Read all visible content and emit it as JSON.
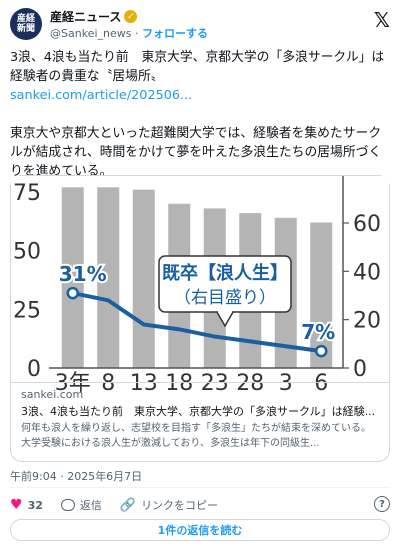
{
  "account": {
    "avatar_text": "産経新聞",
    "name": "産経ニュース",
    "handle": "@Sankei_news",
    "separator": "·",
    "follow_label": "フォローする"
  },
  "tweet": {
    "text_line1": "3浪、4浪も当たり前　東京大学、京都大学の「多浪サークル」は経験者の貴重な〝居場所〟",
    "link": "sankei.com/article/202506...",
    "text_para2": "東京大や京都大といった超難関大学では、経験者を集めたサークルが結成され、時間をかけて夢を叶えた多浪生たちの居場所づくりを進めている。",
    "timestamp": "午前9:04 · 2025年6月7日"
  },
  "card": {
    "domain": "sankei.com",
    "title": "3浪、4浪も当たり前　東京大学、京都大学の「多浪サークル」は経験...",
    "description": "何年も浪人を繰り返し、志望校を目指す「多浪生」たちが結束を深めている。大学受験における浪人生が激減しており、多浪生は年下の同級生..."
  },
  "chart_data": {
    "type": "bar",
    "categories": [
      "3年",
      "8",
      "13",
      "18",
      "23",
      "28",
      "3",
      "6"
    ],
    "bar_values_left_axis": [
      77,
      77,
      76,
      70,
      68,
      66,
      64,
      62
    ],
    "left_axis_ticks": [
      "75",
      "50",
      "25",
      "0"
    ],
    "right_axis_ticks": [
      "60",
      "40",
      "20",
      "0"
    ],
    "line_series": {
      "name": "既卒【浪人生】",
      "axis_note": "（右目盛り）",
      "values": [
        31,
        28,
        18,
        16,
        13,
        11,
        9,
        7
      ],
      "start_label": "31%",
      "end_label": "7%"
    },
    "colors": {
      "bar": "#b4b4b4",
      "line": "#1a5fa0",
      "label": "#1a5fa0"
    }
  },
  "actions": {
    "likes": "32",
    "reply_label": "返信",
    "copy_link_label": "リンクをコピー",
    "help_icon": "?",
    "read_replies_label": "1件の返信を読む"
  },
  "icons": {
    "x_logo": "𝕏",
    "verified": "✓",
    "heart": "♥",
    "link": "🔗"
  }
}
